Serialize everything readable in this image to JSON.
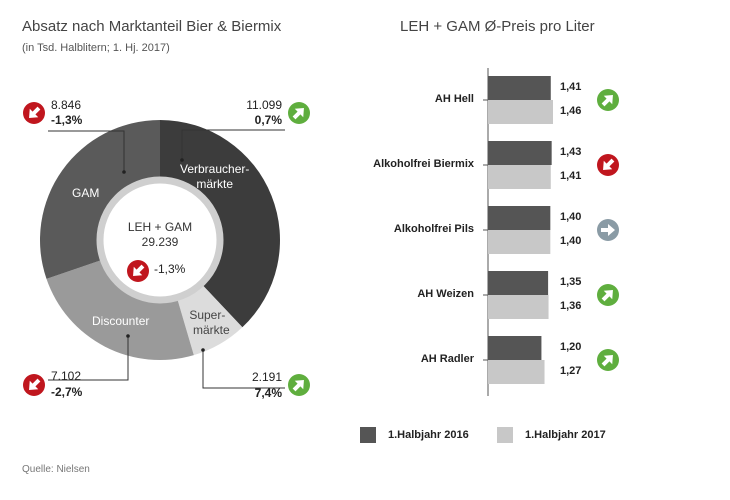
{
  "chart_data": [
    {
      "type": "pie",
      "title": "Absatz nach Marktanteil Bier & Biermix",
      "subtitle": "(in Tsd. Halblitern; 1. Hj. 2017)",
      "center": {
        "line1": "LEH + GAM",
        "line2": "29.239",
        "pct": "-1,3%",
        "trend": "down"
      },
      "slices": [
        {
          "label_lines": [
            "Verbraucher-",
            "märkte"
          ],
          "value": 11099,
          "value_text": "11.099",
          "pct": "0,7%",
          "trend": "up",
          "color": "#3c3c3c"
        },
        {
          "label_lines": [
            "Super-",
            "märkte"
          ],
          "value": 2191,
          "value_text": "2.191",
          "pct": "7,4%",
          "trend": "up",
          "color": "#dcdcdc"
        },
        {
          "label_lines": [
            "Discounter"
          ],
          "value": 7102,
          "value_text": "7.102",
          "pct": "-2,7%",
          "trend": "down",
          "color": "#9a9a9a"
        },
        {
          "label_lines": [
            "GAM"
          ],
          "value": 8846,
          "value_text": "8.846",
          "pct": "-1,3%",
          "trend": "down",
          "color": "#5a5a5a"
        }
      ]
    },
    {
      "type": "bar",
      "orientation": "horizontal",
      "title": "LEH + GAM Ø-Preis pro Liter",
      "categories": [
        "AH Hell",
        "Alkoholfrei Biermix",
        "Alkoholfrei Pils",
        "AH Weizen",
        "AH Radler"
      ],
      "series": [
        {
          "name": "1.Halbjahr 2016",
          "values": [
            1.41,
            1.43,
            1.4,
            1.35,
            1.2
          ],
          "color": "#555555"
        },
        {
          "name": "1.Halbjahr 2017",
          "values": [
            1.46,
            1.41,
            1.4,
            1.36,
            1.27
          ],
          "color": "#c8c8c8"
        }
      ],
      "value_labels_2016": [
        "1,41",
        "1,43",
        "1,40",
        "1,35",
        "1,20"
      ],
      "value_labels_2017": [
        "1,46",
        "1,41",
        "1,40",
        "1,36",
        "1,27"
      ],
      "trends": [
        "up",
        "down",
        "flat",
        "up",
        "up"
      ],
      "legend_position": "bottom"
    }
  ],
  "source": "Quelle: Nielsen",
  "colors": {
    "up": "#5fae3e",
    "down": "#c0161e",
    "flat": "#8a9ba5"
  }
}
